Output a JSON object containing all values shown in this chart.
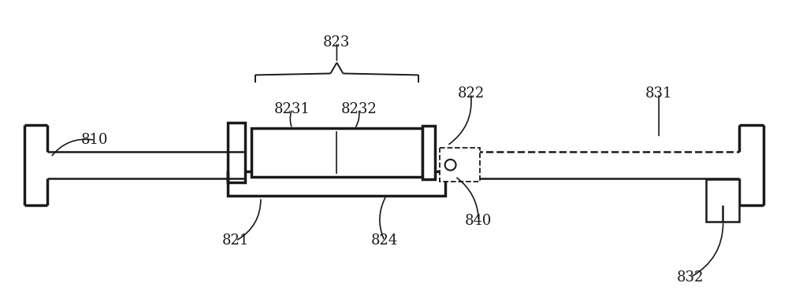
{
  "bg_color": "#ffffff",
  "line_color": "#1a1a1a",
  "label_color": "#1a1a1a",
  "font_size": 13,
  "fig_width": 10.0,
  "fig_height": 3.88
}
